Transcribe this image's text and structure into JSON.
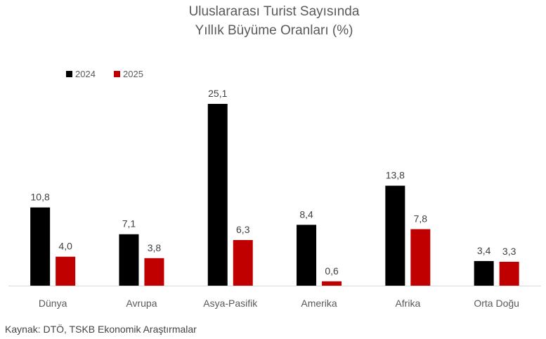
{
  "chart_data": {
    "type": "bar",
    "title": [
      "Uluslararası Turist Sayısında",
      "Yıllık Büyüme Oranları (%)"
    ],
    "categories": [
      "Dünya",
      "Avrupa",
      "Asya-Pasifik",
      "Amerika",
      "Afrika",
      "Orta Doğu"
    ],
    "series": [
      {
        "name": "2024",
        "color": "#000000",
        "values": [
          10.8,
          7.1,
          25.1,
          8.4,
          13.8,
          3.4
        ],
        "labels": [
          "10,8",
          "7,1",
          "25,1",
          "8,4",
          "13,8",
          "3,4"
        ]
      },
      {
        "name": "2025",
        "color": "#C00000",
        "values": [
          4.0,
          3.8,
          6.3,
          0.6,
          7.8,
          3.3
        ],
        "labels": [
          "4,0",
          "3,8",
          "6,3",
          "0,6",
          "7,8",
          "3,3"
        ]
      }
    ],
    "ylim": [
      0,
      25.1
    ],
    "grid": false,
    "legend": "top-left"
  },
  "source": "Kaynak: DTÖ, TSKB Ekonomik Araştırmalar"
}
